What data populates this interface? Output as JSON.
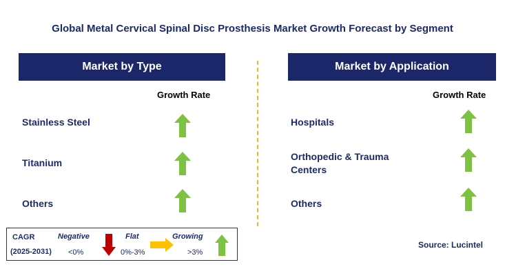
{
  "title": "Global Metal Cervical Spinal Disc Prosthesis Market Growth Forecast by Segment",
  "left_panel": {
    "header": "Market by Type",
    "growth_rate_label": "Growth Rate",
    "rows": [
      {
        "label": "Stainless Steel",
        "trend": "growing"
      },
      {
        "label": "Titanium",
        "trend": "growing"
      },
      {
        "label": "Others",
        "trend": "growing"
      }
    ]
  },
  "right_panel": {
    "header": "Market by Application",
    "growth_rate_label": "Growth Rate",
    "rows": [
      {
        "label": "Hospitals",
        "trend": "growing"
      },
      {
        "label_line1": "Orthopedic & Trauma",
        "label_line2": "Centers",
        "trend": "growing"
      },
      {
        "label": "Others",
        "trend": "growing"
      }
    ]
  },
  "legend": {
    "cagr_label": "CAGR",
    "period": "(2025-2031)",
    "negative": {
      "label": "Negative",
      "range": "<0%",
      "icon": "red-down-arrow-icon"
    },
    "flat": {
      "label": "Flat",
      "range": "0%-3%",
      "icon": "yellow-right-arrow-icon"
    },
    "growing": {
      "label": "Growing",
      "range": ">3%",
      "icon": "green-up-arrow-icon"
    }
  },
  "source": "Source: Lucintel",
  "colors": {
    "header_bg": "#1b2769",
    "text_navy": "#1b2a6b",
    "growing_arrow": "#7dc242",
    "negative_arrow": "#c00000",
    "flat_arrow": "#ffc000",
    "divider": "#f0b323"
  }
}
